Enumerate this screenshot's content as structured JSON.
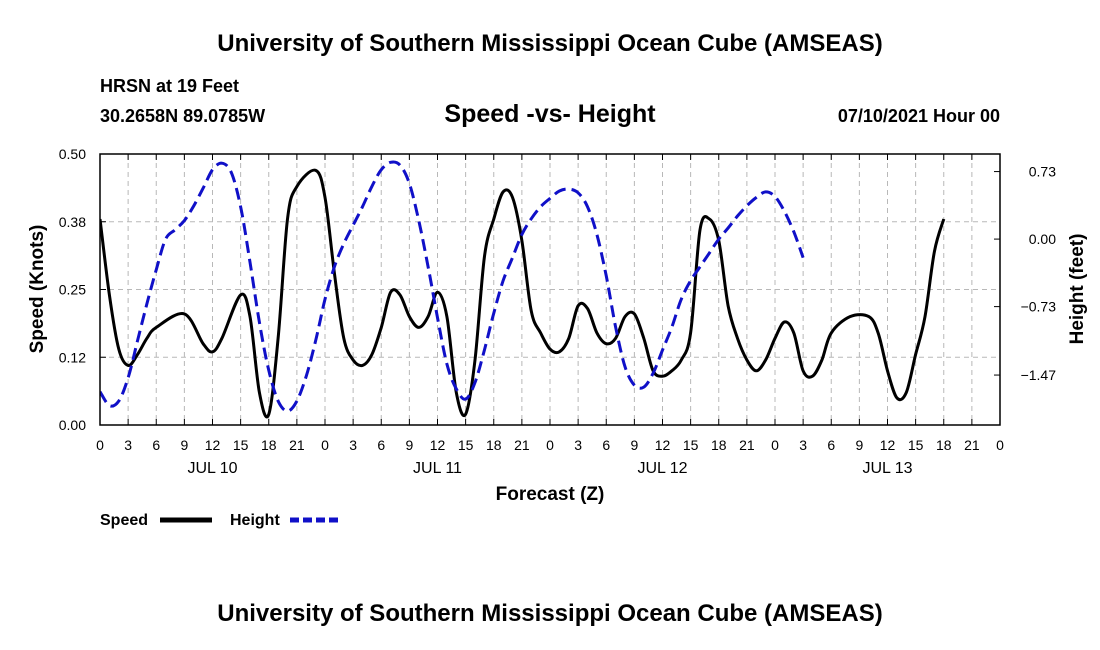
{
  "page": {
    "top_title": "University of Southern Mississippi Ocean Cube (AMSEAS)",
    "bottom_title": "University of Southern Mississippi Ocean Cube (AMSEAS)",
    "station_line": "HRSN at 19 Feet",
    "coords_line": "30.2658N  89.0785W",
    "date_line": "07/10/2021 Hour 00"
  },
  "colors": {
    "speed": "#000000",
    "height": "#1010c8",
    "grid": "#b8b8b8"
  },
  "chart_data": {
    "type": "line",
    "title": "Speed -vs- Height",
    "xlabel": "Forecast (Z)",
    "ylabel": "Speed (Knots)",
    "y2label": "Height (feet)",
    "xlim": [
      0,
      96
    ],
    "ylim": [
      0,
      0.5
    ],
    "y2lim": [
      -2.01,
      0.92
    ],
    "x_ticks": [
      0,
      3,
      6,
      9,
      12,
      15,
      18,
      21,
      24,
      27,
      30,
      33,
      36,
      39,
      42,
      45,
      48,
      51,
      54,
      57,
      60,
      63,
      66,
      69,
      72,
      75,
      78,
      81,
      84,
      87,
      90,
      93,
      96
    ],
    "x_tick_labels": [
      "0",
      "3",
      "6",
      "9",
      "12",
      "15",
      "18",
      "21",
      "0",
      "3",
      "6",
      "9",
      "12",
      "15",
      "18",
      "21",
      "0",
      "3",
      "6",
      "9",
      "12",
      "15",
      "18",
      "21",
      "0",
      "3",
      "6",
      "9",
      "12",
      "15",
      "18",
      "21",
      "0"
    ],
    "day_labels": [
      {
        "x": 12,
        "label": "JUL 10"
      },
      {
        "x": 36,
        "label": "JUL 11"
      },
      {
        "x": 60,
        "label": "JUL 12"
      },
      {
        "x": 84,
        "label": "JUL 13"
      }
    ],
    "y_ticks": [
      0,
      0.125,
      0.25,
      0.375,
      0.5
    ],
    "y_tick_labels": [
      "0.00",
      "0.12",
      "0.25",
      "0.38",
      "0.50"
    ],
    "y2_ticks": [
      -1.47,
      -0.73,
      0.0,
      0.73
    ],
    "y2_tick_labels": [
      "−1.47",
      "−0.73",
      "0.00",
      "0.73"
    ],
    "series": [
      {
        "name": "Speed",
        "axis": "left",
        "style": "solid",
        "points": [
          [
            0,
            0.38
          ],
          [
            1,
            0.24
          ],
          [
            2,
            0.14
          ],
          [
            3,
            0.11
          ],
          [
            4,
            0.13
          ],
          [
            5,
            0.16
          ],
          [
            6,
            0.18
          ],
          [
            9,
            0.205
          ],
          [
            11,
            0.15
          ],
          [
            12,
            0.135
          ],
          [
            13,
            0.16
          ],
          [
            15,
            0.24
          ],
          [
            16,
            0.2
          ],
          [
            17,
            0.06
          ],
          [
            18,
            0.02
          ],
          [
            19,
            0.16
          ],
          [
            20,
            0.38
          ],
          [
            21,
            0.44
          ],
          [
            23,
            0.47
          ],
          [
            24,
            0.42
          ],
          [
            25,
            0.28
          ],
          [
            26,
            0.16
          ],
          [
            27,
            0.12
          ],
          [
            28,
            0.11
          ],
          [
            29,
            0.13
          ],
          [
            30,
            0.18
          ],
          [
            31,
            0.245
          ],
          [
            32,
            0.24
          ],
          [
            33,
            0.2
          ],
          [
            34,
            0.18
          ],
          [
            35,
            0.2
          ],
          [
            36,
            0.245
          ],
          [
            37,
            0.2
          ],
          [
            38,
            0.06
          ],
          [
            39,
            0.02
          ],
          [
            40,
            0.12
          ],
          [
            41,
            0.31
          ],
          [
            42,
            0.38
          ],
          [
            43,
            0.43
          ],
          [
            44,
            0.42
          ],
          [
            45,
            0.34
          ],
          [
            46,
            0.21
          ],
          [
            47,
            0.17
          ],
          [
            48,
            0.14
          ],
          [
            49,
            0.135
          ],
          [
            50,
            0.16
          ],
          [
            51,
            0.22
          ],
          [
            52,
            0.215
          ],
          [
            53,
            0.17
          ],
          [
            54,
            0.15
          ],
          [
            55,
            0.16
          ],
          [
            56,
            0.2
          ],
          [
            57,
            0.205
          ],
          [
            58,
            0.16
          ],
          [
            59,
            0.1
          ],
          [
            60,
            0.09
          ],
          [
            61,
            0.1
          ],
          [
            62,
            0.12
          ],
          [
            63,
            0.17
          ],
          [
            64,
            0.36
          ],
          [
            65,
            0.38
          ],
          [
            66,
            0.34
          ],
          [
            67,
            0.22
          ],
          [
            68,
            0.16
          ],
          [
            69,
            0.12
          ],
          [
            70,
            0.1
          ],
          [
            71,
            0.12
          ],
          [
            72,
            0.16
          ],
          [
            73,
            0.19
          ],
          [
            74,
            0.17
          ],
          [
            75,
            0.1
          ],
          [
            76,
            0.09
          ],
          [
            77,
            0.12
          ],
          [
            78,
            0.17
          ],
          [
            80,
            0.2
          ],
          [
            82,
            0.2
          ],
          [
            83,
            0.17
          ],
          [
            84,
            0.1
          ],
          [
            85,
            0.05
          ],
          [
            86,
            0.06
          ],
          [
            87,
            0.13
          ],
          [
            88,
            0.2
          ],
          [
            89,
            0.32
          ],
          [
            90,
            0.38
          ]
        ]
      },
      {
        "name": "Height",
        "axis": "right",
        "style": "dashed",
        "points": [
          [
            0,
            -1.65
          ],
          [
            1,
            -1.8
          ],
          [
            2,
            -1.75
          ],
          [
            3,
            -1.5
          ],
          [
            4,
            -1.1
          ],
          [
            5,
            -0.7
          ],
          [
            6,
            -0.33
          ],
          [
            7,
            0
          ],
          [
            8,
            0.1
          ],
          [
            9,
            0.2
          ],
          [
            10,
            0.36
          ],
          [
            11,
            0.55
          ],
          [
            12,
            0.75
          ],
          [
            13,
            0.82
          ],
          [
            14,
            0.72
          ],
          [
            15,
            0.35
          ],
          [
            16,
            -0.25
          ],
          [
            17,
            -0.9
          ],
          [
            18,
            -1.42
          ],
          [
            19,
            -1.75
          ],
          [
            20,
            -1.86
          ],
          [
            21,
            -1.75
          ],
          [
            22,
            -1.48
          ],
          [
            23,
            -1.1
          ],
          [
            24,
            -0.65
          ],
          [
            25,
            -0.3
          ],
          [
            26,
            -0.05
          ],
          [
            27,
            0.15
          ],
          [
            28,
            0.35
          ],
          [
            29,
            0.57
          ],
          [
            30,
            0.75
          ],
          [
            31,
            0.83
          ],
          [
            32,
            0.8
          ],
          [
            33,
            0.6
          ],
          [
            34,
            0.2
          ],
          [
            35,
            -0.3
          ],
          [
            36,
            -0.85
          ],
          [
            37,
            -1.35
          ],
          [
            38,
            -1.62
          ],
          [
            39,
            -1.73
          ],
          [
            40,
            -1.55
          ],
          [
            41,
            -1.2
          ],
          [
            42,
            -0.8
          ],
          [
            43,
            -0.45
          ],
          [
            44,
            -0.2
          ],
          [
            45,
            0.05
          ],
          [
            46,
            0.22
          ],
          [
            47,
            0.35
          ],
          [
            48,
            0.44
          ],
          [
            49,
            0.52
          ],
          [
            50,
            0.54
          ],
          [
            51,
            0.5
          ],
          [
            52,
            0.35
          ],
          [
            53,
            0.05
          ],
          [
            54,
            -0.4
          ],
          [
            55,
            -0.95
          ],
          [
            56,
            -1.38
          ],
          [
            57,
            -1.58
          ],
          [
            58,
            -1.6
          ],
          [
            59,
            -1.45
          ],
          [
            60,
            -1.2
          ],
          [
            61,
            -0.95
          ],
          [
            62,
            -0.65
          ],
          [
            63,
            -0.45
          ],
          [
            64,
            -0.3
          ],
          [
            65,
            -0.15
          ],
          [
            66,
            0
          ],
          [
            67,
            0.12
          ],
          [
            68,
            0.25
          ],
          [
            69,
            0.36
          ],
          [
            70,
            0.45
          ],
          [
            71,
            0.51
          ],
          [
            72,
            0.46
          ],
          [
            73,
            0.3
          ],
          [
            74,
            0.08
          ],
          [
            75,
            -0.2
          ]
        ]
      }
    ],
    "legend": [
      {
        "label": "Speed",
        "style": "solid",
        "color": "#000000"
      },
      {
        "label": "Height",
        "style": "dashed",
        "color": "#1010c8"
      }
    ],
    "grid": true
  }
}
